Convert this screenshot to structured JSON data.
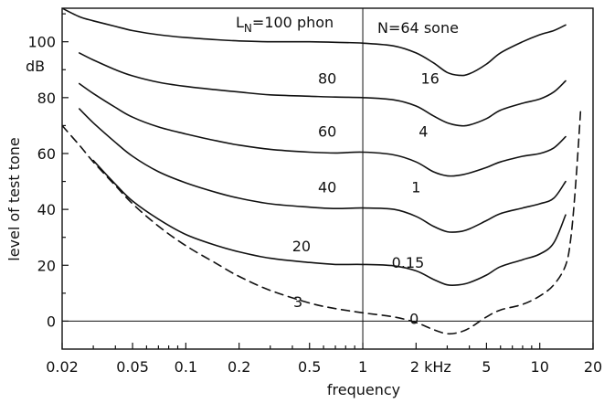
{
  "chart_data": {
    "type": "line",
    "xlabel": "frequency",
    "ylabel": "level of test tone",
    "y_unit": "dB",
    "x_scale": "log",
    "xlim": [
      0.02,
      20
    ],
    "ylim": [
      -10,
      112
    ],
    "x_ticks": [
      {
        "v": 0.02,
        "label": "0.02"
      },
      {
        "v": 0.05,
        "label": "0.05"
      },
      {
        "v": 0.1,
        "label": "0.1"
      },
      {
        "v": 0.2,
        "label": "0.2"
      },
      {
        "v": 0.5,
        "label": "0.5"
      },
      {
        "v": 1,
        "label": "1"
      },
      {
        "v": 2,
        "label": "2 kHz"
      },
      {
        "v": 5,
        "label": "5"
      },
      {
        "v": 10,
        "label": "10"
      },
      {
        "v": 20,
        "label": "20"
      }
    ],
    "y_ticks": [
      {
        "v": 0,
        "label": "0"
      },
      {
        "v": 20,
        "label": "20"
      },
      {
        "v": 40,
        "label": "40"
      },
      {
        "v": 60,
        "label": "60"
      },
      {
        "v": 80,
        "label": "80"
      },
      {
        "v": 100,
        "label": "100"
      }
    ],
    "reference_lines": {
      "vertical_x": 1,
      "horizontal_y": 0
    },
    "header_left": {
      "main": "L",
      "sub": "N",
      "rest": "=100 phon"
    },
    "header_right": "N=64 sone",
    "series": [
      {
        "phon": "100",
        "sone": "64",
        "dashed": false,
        "x": [
          0.02,
          0.025,
          0.03,
          0.04,
          0.05,
          0.07,
          0.1,
          0.15,
          0.2,
          0.3,
          0.5,
          0.7,
          1,
          1.5,
          2,
          2.5,
          3,
          3.5,
          4,
          5,
          6,
          8,
          10,
          12,
          14
        ],
        "y": [
          112,
          109,
          107.5,
          105.5,
          104,
          102.5,
          101.5,
          100.7,
          100.3,
          100,
          100,
          99.8,
          99.5,
          98.5,
          96,
          92.5,
          89,
          88,
          88.5,
          92,
          96,
          100,
          102.5,
          104,
          106
        ]
      },
      {
        "phon": "80",
        "sone": "16",
        "dashed": false,
        "x": [
          0.025,
          0.03,
          0.04,
          0.05,
          0.07,
          0.1,
          0.15,
          0.2,
          0.3,
          0.5,
          0.7,
          1,
          1.5,
          2,
          2.5,
          3,
          3.5,
          4,
          5,
          6,
          8,
          10,
          12,
          14
        ],
        "y": [
          96,
          93.5,
          90,
          87.8,
          85.5,
          84,
          82.8,
          82,
          81,
          80.5,
          80.2,
          80,
          79.2,
          77,
          73.5,
          71,
          70,
          70.2,
          72.5,
          75.5,
          78,
          79.5,
          82,
          86
        ]
      },
      {
        "phon": "60",
        "sone": "4",
        "dashed": false,
        "x": [
          0.025,
          0.03,
          0.04,
          0.05,
          0.07,
          0.1,
          0.15,
          0.2,
          0.3,
          0.5,
          0.7,
          1,
          1.5,
          2,
          2.5,
          3,
          3.5,
          4,
          5,
          6,
          8,
          10,
          12,
          14
        ],
        "y": [
          85,
          81.5,
          76.5,
          73,
          69.5,
          67,
          64.5,
          63,
          61.5,
          60.5,
          60.2,
          60.5,
          59.5,
          57,
          53.5,
          52,
          52.2,
          53,
          55,
          57,
          59,
          60,
          62,
          66
        ]
      },
      {
        "phon": "40",
        "sone": "1",
        "dashed": false,
        "x": [
          0.025,
          0.03,
          0.04,
          0.05,
          0.07,
          0.1,
          0.15,
          0.2,
          0.3,
          0.5,
          0.7,
          1,
          1.5,
          2,
          2.5,
          3,
          3.5,
          4,
          5,
          6,
          8,
          10,
          12,
          14
        ],
        "y": [
          76,
          71,
          64,
          59,
          53.5,
          49.5,
          46,
          44,
          42,
          40.8,
          40.3,
          40.5,
          40,
          37.5,
          34,
          32,
          32,
          33,
          36,
          38.5,
          40.5,
          42,
          44,
          50
        ]
      },
      {
        "phon": "20",
        "sone": "0.15",
        "dashed": false,
        "x": [
          0.03,
          0.04,
          0.05,
          0.07,
          0.1,
          0.15,
          0.2,
          0.3,
          0.5,
          0.7,
          1,
          1.5,
          2,
          2.5,
          3,
          3.5,
          4,
          5,
          6,
          8,
          10,
          12,
          14
        ],
        "y": [
          57.5,
          49,
          43,
          36.5,
          31,
          27,
          24.8,
          22.5,
          21,
          20.3,
          20.3,
          19.8,
          18,
          15,
          13,
          13,
          13.8,
          16.5,
          19.5,
          22,
          24,
          28,
          38
        ]
      },
      {
        "phon": "3",
        "sone": "0",
        "dashed": true,
        "x": [
          0.02,
          0.025,
          0.03,
          0.04,
          0.05,
          0.07,
          0.1,
          0.15,
          0.2,
          0.3,
          0.5,
          0.7,
          1,
          1.5,
          2,
          2.5,
          3,
          3.5,
          4,
          5,
          6,
          8,
          10,
          12,
          14,
          15,
          16,
          17
        ],
        "y": [
          70,
          63,
          57,
          48.5,
          42,
          34,
          27,
          20.5,
          16,
          11,
          6.5,
          4.5,
          3,
          1.5,
          -0.5,
          -3,
          -4.5,
          -4,
          -2.5,
          1.5,
          4,
          6,
          9,
          13,
          20,
          30,
          50,
          75
        ]
      }
    ]
  }
}
